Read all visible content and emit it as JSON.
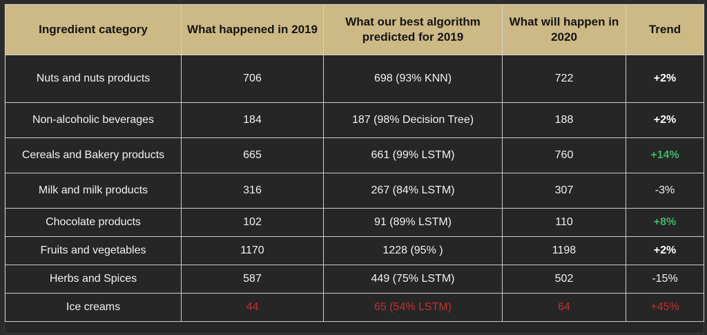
{
  "headers": [
    "Ingredient category",
    "What happened in 2019",
    "What our best algorithm predicted for 2019",
    "What will happen in 2020",
    "Trend"
  ],
  "rows": [
    {
      "category": "Nuts and nuts products",
      "happened_2019": "706",
      "predicted_2019": "698  (93% KNN)",
      "will_2020": "722",
      "trend": "+2%"
    },
    {
      "category": "Non-alcoholic beverages",
      "happened_2019": "184",
      "predicted_2019": "187 (98% Decision Tree)",
      "will_2020": "188",
      "trend": "+2%"
    },
    {
      "category": "Cereals and Bakery products",
      "happened_2019": "665",
      "predicted_2019": "661 (99% LSTM)",
      "will_2020": "760",
      "trend": "+14%"
    },
    {
      "category": "Milk and milk products",
      "happened_2019": "316",
      "predicted_2019": "267 (84% LSTM)",
      "will_2020": "307",
      "trend": "-3%"
    },
    {
      "category": "Chocolate products",
      "happened_2019": "102",
      "predicted_2019": "91 (89% LSTM)",
      "will_2020": "110",
      "trend": "+8%"
    },
    {
      "category": "Fruits and vegetables",
      "happened_2019": "1170",
      "predicted_2019": "1228 (95% )",
      "will_2020": "1198",
      "trend": "+2%"
    },
    {
      "category": "Herbs and Spices",
      "happened_2019": "587",
      "predicted_2019": "449 (75% LSTM)",
      "will_2020": "502",
      "trend": "-15%"
    },
    {
      "category": "Ice creams",
      "happened_2019": "44",
      "predicted_2019": "65 (54% LSTM)",
      "will_2020": "64",
      "trend": "+45%"
    }
  ],
  "colors": {
    "header_bg": "#cdb985",
    "body_bg": "#262626",
    "positive_trend": "#3fb56a",
    "highlight_red": "#c23035"
  }
}
